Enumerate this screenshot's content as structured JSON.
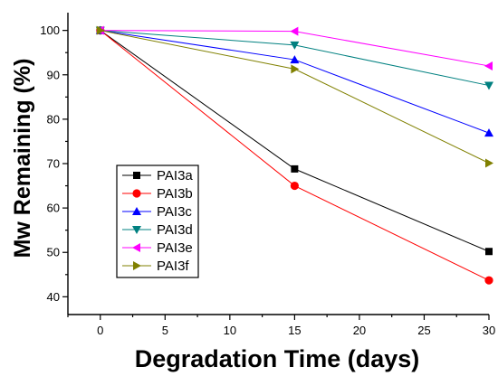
{
  "chart_data": {
    "type": "line",
    "title": "",
    "xlabel": "Degradation Time (days)",
    "ylabel": "Mw Remaining (%)",
    "xlim": [
      -2.5,
      30
    ],
    "ylim": [
      36,
      104
    ],
    "xticks": [
      0,
      5,
      10,
      15,
      20,
      25,
      30
    ],
    "yticks": [
      40,
      50,
      60,
      70,
      80,
      90,
      100
    ],
    "x": [
      0,
      15,
      30
    ],
    "grid": false,
    "legend_position": "lower-left",
    "series": [
      {
        "name": "PAI3a",
        "values": [
          100,
          68.8,
          50.2
        ],
        "color": "#000000",
        "marker": "square"
      },
      {
        "name": "PAI3b",
        "values": [
          100,
          65.0,
          43.7
        ],
        "color": "#ff0000",
        "marker": "circle"
      },
      {
        "name": "PAI3c",
        "values": [
          100,
          93.4,
          76.9
        ],
        "color": "#0000ff",
        "marker": "triangle-up"
      },
      {
        "name": "PAI3d",
        "values": [
          100,
          96.7,
          87.6
        ],
        "color": "#008080",
        "marker": "triangle-down"
      },
      {
        "name": "PAI3e",
        "values": [
          100,
          99.8,
          92.0
        ],
        "color": "#ff00ff",
        "marker": "triangle-left"
      },
      {
        "name": "PAI3f",
        "values": [
          100,
          91.3,
          70.1
        ],
        "color": "#808000",
        "marker": "triangle-right"
      }
    ]
  }
}
